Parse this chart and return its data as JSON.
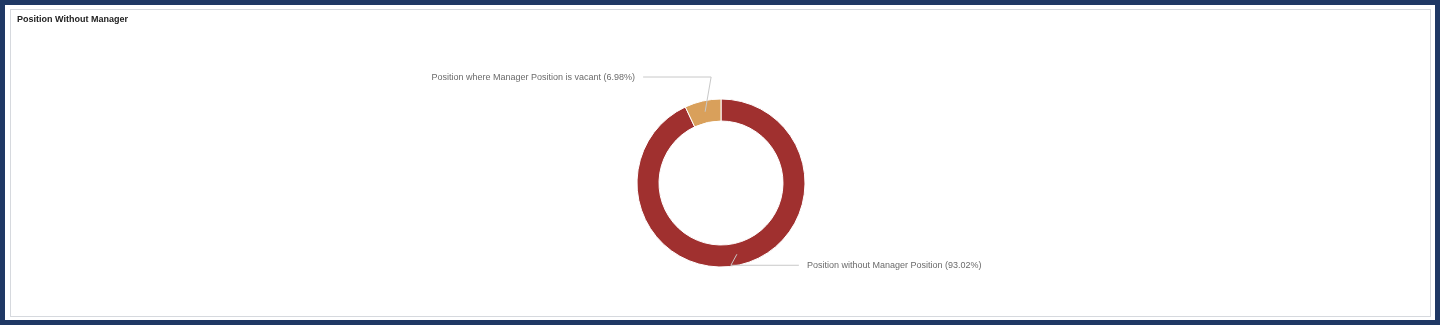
{
  "chart_data": {
    "type": "donut",
    "title": "Position Without Manager",
    "categories": [
      "Position without Manager Position",
      "Position where Manager Position is vacant"
    ],
    "values": [
      93.02,
      6.98
    ],
    "colors": [
      "#a0302f",
      "#d9a05b"
    ],
    "value_labels": [
      "(93.02%)",
      "(6.98%)"
    ]
  }
}
